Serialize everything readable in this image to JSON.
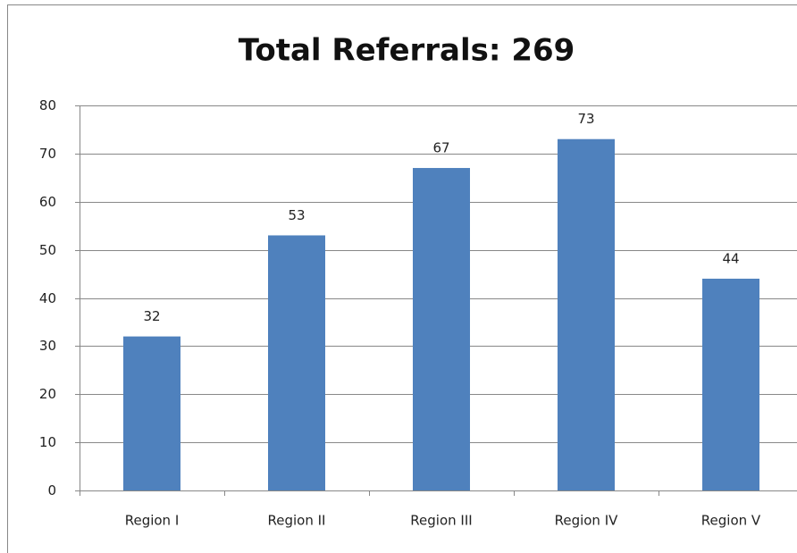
{
  "chart_data": {
    "type": "bar",
    "title": "Total Referrals: 269",
    "categories": [
      "Region I",
      "Region II",
      "Region III",
      "Region IV",
      "Region V"
    ],
    "values": [
      32,
      53,
      67,
      73,
      44
    ],
    "color": "#4f81bd",
    "ylim": [
      0,
      80
    ],
    "yticks": [
      0,
      10,
      20,
      30,
      40,
      50,
      60,
      70,
      80
    ],
    "grid": true
  }
}
